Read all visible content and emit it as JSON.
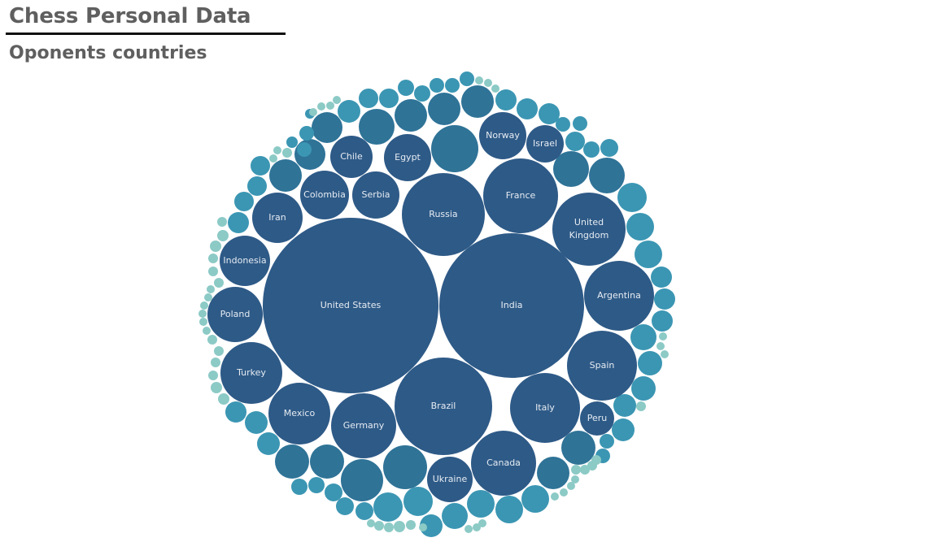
{
  "header": {
    "title": "Chess Personal Data",
    "subtitle": "Oponents countries"
  },
  "colors": {
    "large": "#2e5a87",
    "medium": "#2f7397",
    "small": "#3b96b3",
    "tiny": "#8ccac6",
    "label": "#e6ecf3"
  },
  "chart_data": {
    "type": "packed-bubble",
    "title": "Oponents countries",
    "labeled_points": [
      {
        "label": "United States"
      },
      {
        "label": "India"
      },
      {
        "label": "Brazil"
      },
      {
        "label": "Russia"
      },
      {
        "label": "France"
      },
      {
        "label": "United Kingdom"
      },
      {
        "label": "Argentina"
      },
      {
        "label": "Canada"
      },
      {
        "label": "Spain"
      },
      {
        "label": "Italy"
      },
      {
        "label": "Germany"
      },
      {
        "label": "Turkey"
      },
      {
        "label": "Mexico"
      },
      {
        "label": "Poland"
      },
      {
        "label": "Indonesia"
      },
      {
        "label": "Ukraine"
      },
      {
        "label": "Norway"
      },
      {
        "label": "Iran"
      },
      {
        "label": "Colombia"
      },
      {
        "label": "Egypt"
      },
      {
        "label": "Serbia"
      },
      {
        "label": "Chile"
      },
      {
        "label": "Israel"
      },
      {
        "label": "Peru"
      }
    ],
    "unlabeled_bubbles": 132
  }
}
